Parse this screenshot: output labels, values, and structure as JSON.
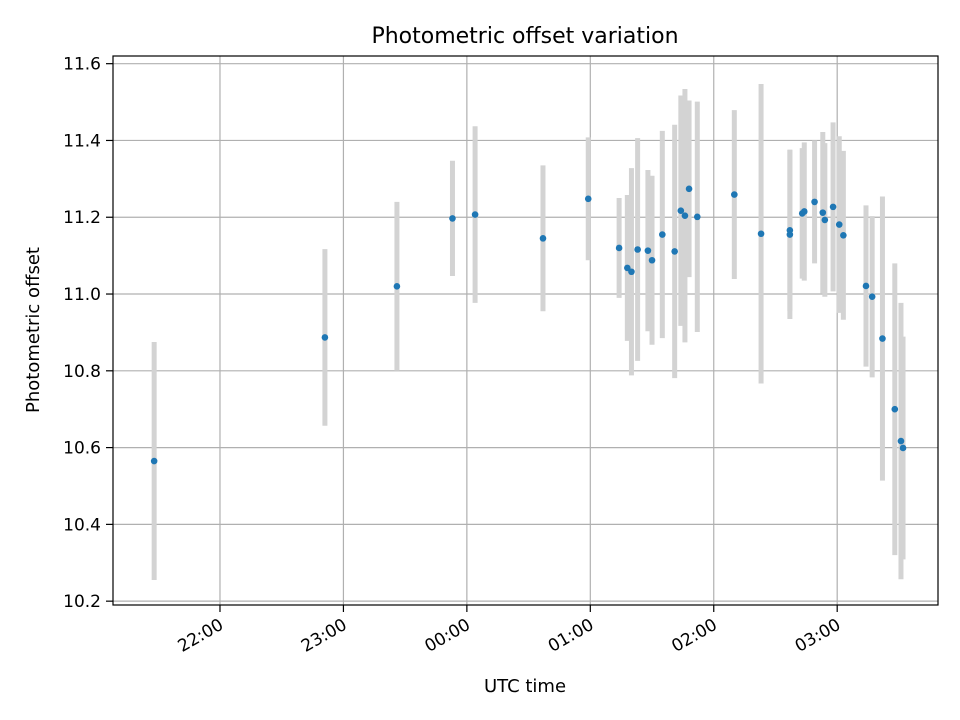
{
  "chart_data": {
    "type": "scatter",
    "title": "Photometric offset variation",
    "xlabel": "UTC time",
    "ylabel": "Photometric offset",
    "x_unit": "UTC time of night (21:00 → 03:40)",
    "xlim": [
      "21:08",
      "03:49"
    ],
    "ylim": [
      10.19,
      11.62
    ],
    "x_ticks": [
      "22:00",
      "23:00",
      "00:00",
      "01:00",
      "02:00",
      "03:00"
    ],
    "y_ticks": [
      "10.2",
      "10.4",
      "10.6",
      "10.8",
      "11.0",
      "11.2",
      "11.4",
      "11.6"
    ],
    "grid": true,
    "colors": {
      "marker": "#1f77b4",
      "errorbar": "#d3d3d3",
      "grid": "#b0b0b0"
    },
    "series": [
      {
        "points": [
          {
            "x": "21:28",
            "y": 10.565,
            "err": 0.31
          },
          {
            "x": "22:51",
            "y": 10.887,
            "err": 0.23
          },
          {
            "x": "23:26",
            "y": 11.02,
            "err": 0.22
          },
          {
            "x": "23:53",
            "y": 11.197,
            "err": 0.15
          },
          {
            "x": "00:04",
            "y": 11.207,
            "err": 0.23
          },
          {
            "x": "00:37",
            "y": 11.145,
            "err": 0.19
          },
          {
            "x": "00:59",
            "y": 11.248,
            "err": 0.16
          },
          {
            "x": "01:14",
            "y": 11.12,
            "err": 0.13
          },
          {
            "x": "01:18",
            "y": 11.068,
            "err": 0.19
          },
          {
            "x": "01:20",
            "y": 11.058,
            "err": 0.27
          },
          {
            "x": "01:23",
            "y": 11.116,
            "err": 0.29
          },
          {
            "x": "01:28",
            "y": 11.113,
            "err": 0.21
          },
          {
            "x": "01:30",
            "y": 11.088,
            "err": 0.22
          },
          {
            "x": "01:35",
            "y": 11.155,
            "err": 0.27
          },
          {
            "x": "01:41",
            "y": 11.111,
            "err": 0.33
          },
          {
            "x": "01:44",
            "y": 11.217,
            "err": 0.3
          },
          {
            "x": "01:46",
            "y": 11.204,
            "err": 0.33
          },
          {
            "x": "01:48",
            "y": 11.274,
            "err": 0.23
          },
          {
            "x": "01:52",
            "y": 11.201,
            "err": 0.3
          },
          {
            "x": "02:10",
            "y": 11.259,
            "err": 0.22
          },
          {
            "x": "02:23",
            "y": 11.157,
            "err": 0.39
          },
          {
            "x": "02:37",
            "y": 11.166,
            "err": 0.21
          },
          {
            "x": "02:37",
            "y": 11.155,
            "err": 0.22
          },
          {
            "x": "02:43",
            "y": 11.21,
            "err": 0.17
          },
          {
            "x": "02:44",
            "y": 11.215,
            "err": 0.18
          },
          {
            "x": "02:49",
            "y": 11.24,
            "err": 0.16
          },
          {
            "x": "02:53",
            "y": 11.212,
            "err": 0.21
          },
          {
            "x": "02:54",
            "y": 11.193,
            "err": 0.2
          },
          {
            "x": "02:58",
            "y": 11.227,
            "err": 0.22
          },
          {
            "x": "03:01",
            "y": 11.181,
            "err": 0.23
          },
          {
            "x": "03:03",
            "y": 11.153,
            "err": 0.22
          },
          {
            "x": "03:14",
            "y": 11.021,
            "err": 0.21
          },
          {
            "x": "03:17",
            "y": 10.993,
            "err": 0.21
          },
          {
            "x": "03:22",
            "y": 10.884,
            "err": 0.37
          },
          {
            "x": "03:28",
            "y": 10.7,
            "err": 0.38
          },
          {
            "x": "03:31",
            "y": 10.617,
            "err": 0.36
          },
          {
            "x": "03:32",
            "y": 10.599,
            "err": 0.29
          }
        ]
      }
    ]
  }
}
